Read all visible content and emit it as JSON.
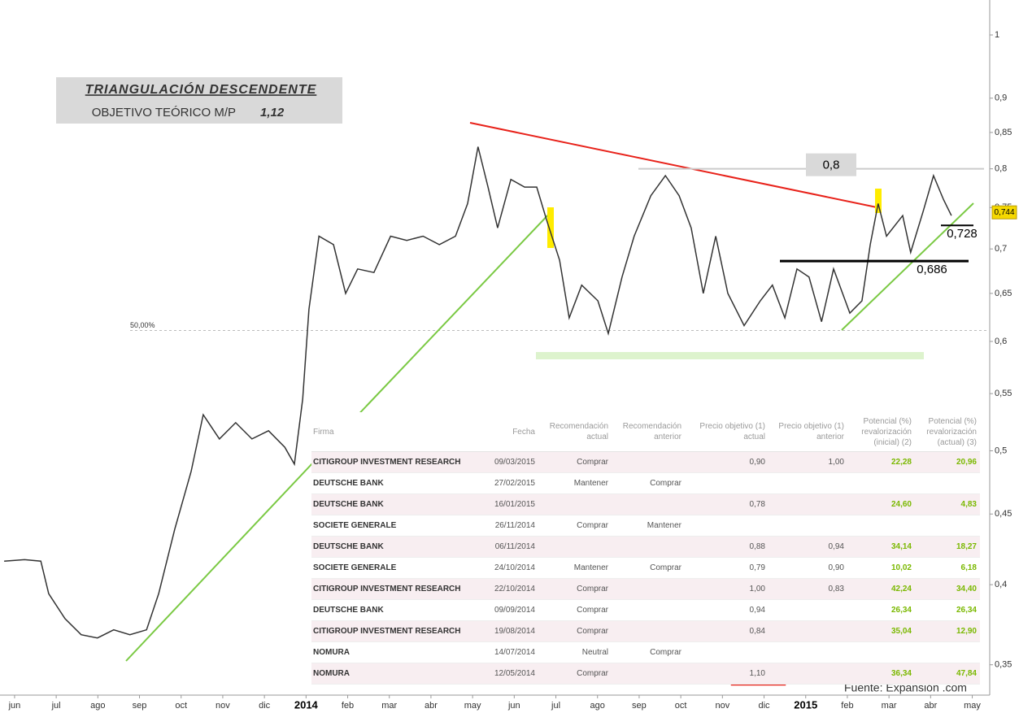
{
  "chart_data": {
    "type": "line",
    "color": "#333333",
    "log": true,
    "ylim": [
      0.335,
      1.06
    ],
    "yticks": [
      {
        "value": 1,
        "label": "1"
      },
      {
        "value": 0.9,
        "label": "0,9"
      },
      {
        "value": 0.85,
        "label": "0,85"
      },
      {
        "value": 0.8,
        "label": "0,8"
      },
      {
        "value": 0.75,
        "label": "0,75"
      },
      {
        "value": 0.7,
        "label": "0,7"
      },
      {
        "value": 0.65,
        "label": "0,65"
      },
      {
        "value": 0.6,
        "label": "0,6"
      },
      {
        "value": 0.55,
        "label": "0,55"
      },
      {
        "value": 0.5,
        "label": "0,5"
      },
      {
        "value": 0.45,
        "label": "0,45"
      },
      {
        "value": 0.4,
        "label": "0,4"
      },
      {
        "value": 0.35,
        "label": "0,35"
      }
    ],
    "xlim": [
      -0.35,
      23.38
    ],
    "xticks": [
      {
        "value": 0,
        "label": "jun"
      },
      {
        "value": 1,
        "label": "jul"
      },
      {
        "value": 2,
        "label": "ago"
      },
      {
        "value": 3,
        "label": "sep"
      },
      {
        "value": 4,
        "label": "oct"
      },
      {
        "value": 5,
        "label": "nov"
      },
      {
        "value": 6,
        "label": "dic"
      },
      {
        "value": 7,
        "label": "2014"
      },
      {
        "value": 8,
        "label": "feb"
      },
      {
        "value": 9,
        "label": "mar"
      },
      {
        "value": 10,
        "label": "abr"
      },
      {
        "value": 11,
        "label": "may"
      },
      {
        "value": 12,
        "label": "jun"
      },
      {
        "value": 13,
        "label": "jul"
      },
      {
        "value": 14,
        "label": "ago"
      },
      {
        "value": 15,
        "label": "sep"
      },
      {
        "value": 16,
        "label": "oct"
      },
      {
        "value": 17,
        "label": "nov"
      },
      {
        "value": 18,
        "label": "dic"
      },
      {
        "value": 19,
        "label": "2015"
      },
      {
        "value": 20,
        "label": "feb"
      },
      {
        "value": 21,
        "label": "mar"
      },
      {
        "value": 22,
        "label": "abr"
      },
      {
        "value": 23,
        "label": "may"
      }
    ],
    "x": [
      -0.25,
      0.24,
      0.63,
      0.82,
      1.21,
      1.6,
      1.99,
      2.38,
      2.77,
      3.17,
      3.46,
      3.85,
      4.24,
      4.53,
      4.92,
      5.31,
      5.7,
      6.1,
      6.49,
      6.72,
      6.92,
      7.07,
      7.31,
      7.66,
      7.95,
      8.24,
      8.63,
      9.03,
      9.42,
      9.81,
      10.2,
      10.59,
      10.88,
      11.13,
      11.37,
      11.6,
      11.92,
      12.25,
      12.54,
      12.78,
      13.09,
      13.32,
      13.62,
      14.01,
      14.26,
      14.59,
      14.88,
      15.28,
      15.63,
      15.96,
      16.25,
      16.54,
      16.84,
      17.13,
      17.52,
      17.91,
      18.2,
      18.5,
      18.79,
      19.08,
      19.38,
      19.67,
      20.06,
      20.35,
      20.55,
      20.74,
      20.94,
      21.33,
      21.52,
      21.82,
      22.07,
      22.31,
      22.5
    ],
    "values": [
      0.416,
      0.417,
      0.416,
      0.394,
      0.378,
      0.368,
      0.366,
      0.371,
      0.368,
      0.371,
      0.394,
      0.439,
      0.483,
      0.531,
      0.51,
      0.524,
      0.51,
      0.517,
      0.503,
      0.489,
      0.545,
      0.633,
      0.715,
      0.705,
      0.65,
      0.677,
      0.673,
      0.715,
      0.71,
      0.715,
      0.705,
      0.715,
      0.755,
      0.83,
      0.776,
      0.725,
      0.786,
      0.776,
      0.776,
      0.734,
      0.687,
      0.624,
      0.659,
      0.642,
      0.608,
      0.668,
      0.715,
      0.765,
      0.791,
      0.765,
      0.725,
      0.65,
      0.715,
      0.65,
      0.616,
      0.642,
      0.659,
      0.624,
      0.677,
      0.668,
      0.62,
      0.677,
      0.629,
      0.642,
      0.705,
      0.755,
      0.715,
      0.74,
      0.696,
      0.745,
      0.791,
      0.76,
      0.74
    ],
    "title": "TRIANGULACIÓN DESCENDENTE",
    "subtitle": "OBJETIVO TEÓRICO M/P",
    "target_label": "1,12",
    "last_price": {
      "value": 0.744,
      "label": "0,744"
    },
    "fib_level": {
      "value": 0.611,
      "label": "50,00%"
    },
    "levels": [
      {
        "value": 0.8,
        "label": "0,8"
      },
      {
        "value": 0.728,
        "label": "0,728"
      },
      {
        "value": 0.686,
        "label": "0,686"
      }
    ],
    "source": "Fuente: Expansión .com"
  },
  "table": {
    "headers": [
      "Firma",
      "Fecha",
      "Recomendación actual",
      "Recomendación anterior",
      "Precio objetivo (1) actual",
      "Precio objetivo (1) anterior",
      "Potencial (%) revalorización (inicial) (2)",
      "Potencial (%) revalorización (actual) (3)"
    ],
    "rows": [
      [
        "CITIGROUP INVESTMENT RESEARCH",
        "09/03/2015",
        "Comprar",
        null,
        "0,90",
        "1,00",
        "22,28",
        "20,96"
      ],
      [
        "DEUTSCHE BANK",
        "27/02/2015",
        "Mantener",
        "Comprar",
        null,
        null,
        null,
        null
      ],
      [
        "DEUTSCHE BANK",
        "16/01/2015",
        null,
        null,
        "0,78",
        null,
        "24,60",
        "4,83"
      ],
      [
        "SOCIETE GENERALE",
        "26/11/2014",
        "Comprar",
        "Mantener",
        null,
        null,
        null,
        null
      ],
      [
        "DEUTSCHE BANK",
        "06/11/2014",
        null,
        null,
        "0,88",
        "0,94",
        "34,14",
        "18,27"
      ],
      [
        "SOCIETE GENERALE",
        "24/10/2014",
        "Mantener",
        "Comprar",
        "0,79",
        "0,90",
        "10,02",
        "6,18"
      ],
      [
        "CITIGROUP INVESTMENT RESEARCH",
        "22/10/2014",
        "Comprar",
        null,
        "1,00",
        "0,83",
        "42,24",
        "34,40"
      ],
      [
        "DEUTSCHE BANK",
        "09/09/2014",
        "Comprar",
        null,
        "0,94",
        null,
        "26,34",
        "26,34"
      ],
      [
        "CITIGROUP INVESTMENT RESEARCH",
        "19/08/2014",
        "Comprar",
        null,
        "0,84",
        null,
        "35,04",
        "12,90"
      ],
      [
        "NOMURA",
        "14/07/2014",
        "Neutral",
        "Comprar",
        null,
        null,
        null,
        null
      ],
      [
        "NOMURA",
        "12/05/2014",
        "Comprar",
        null,
        "1,10",
        null,
        "36,34",
        "47,84"
      ]
    ]
  }
}
